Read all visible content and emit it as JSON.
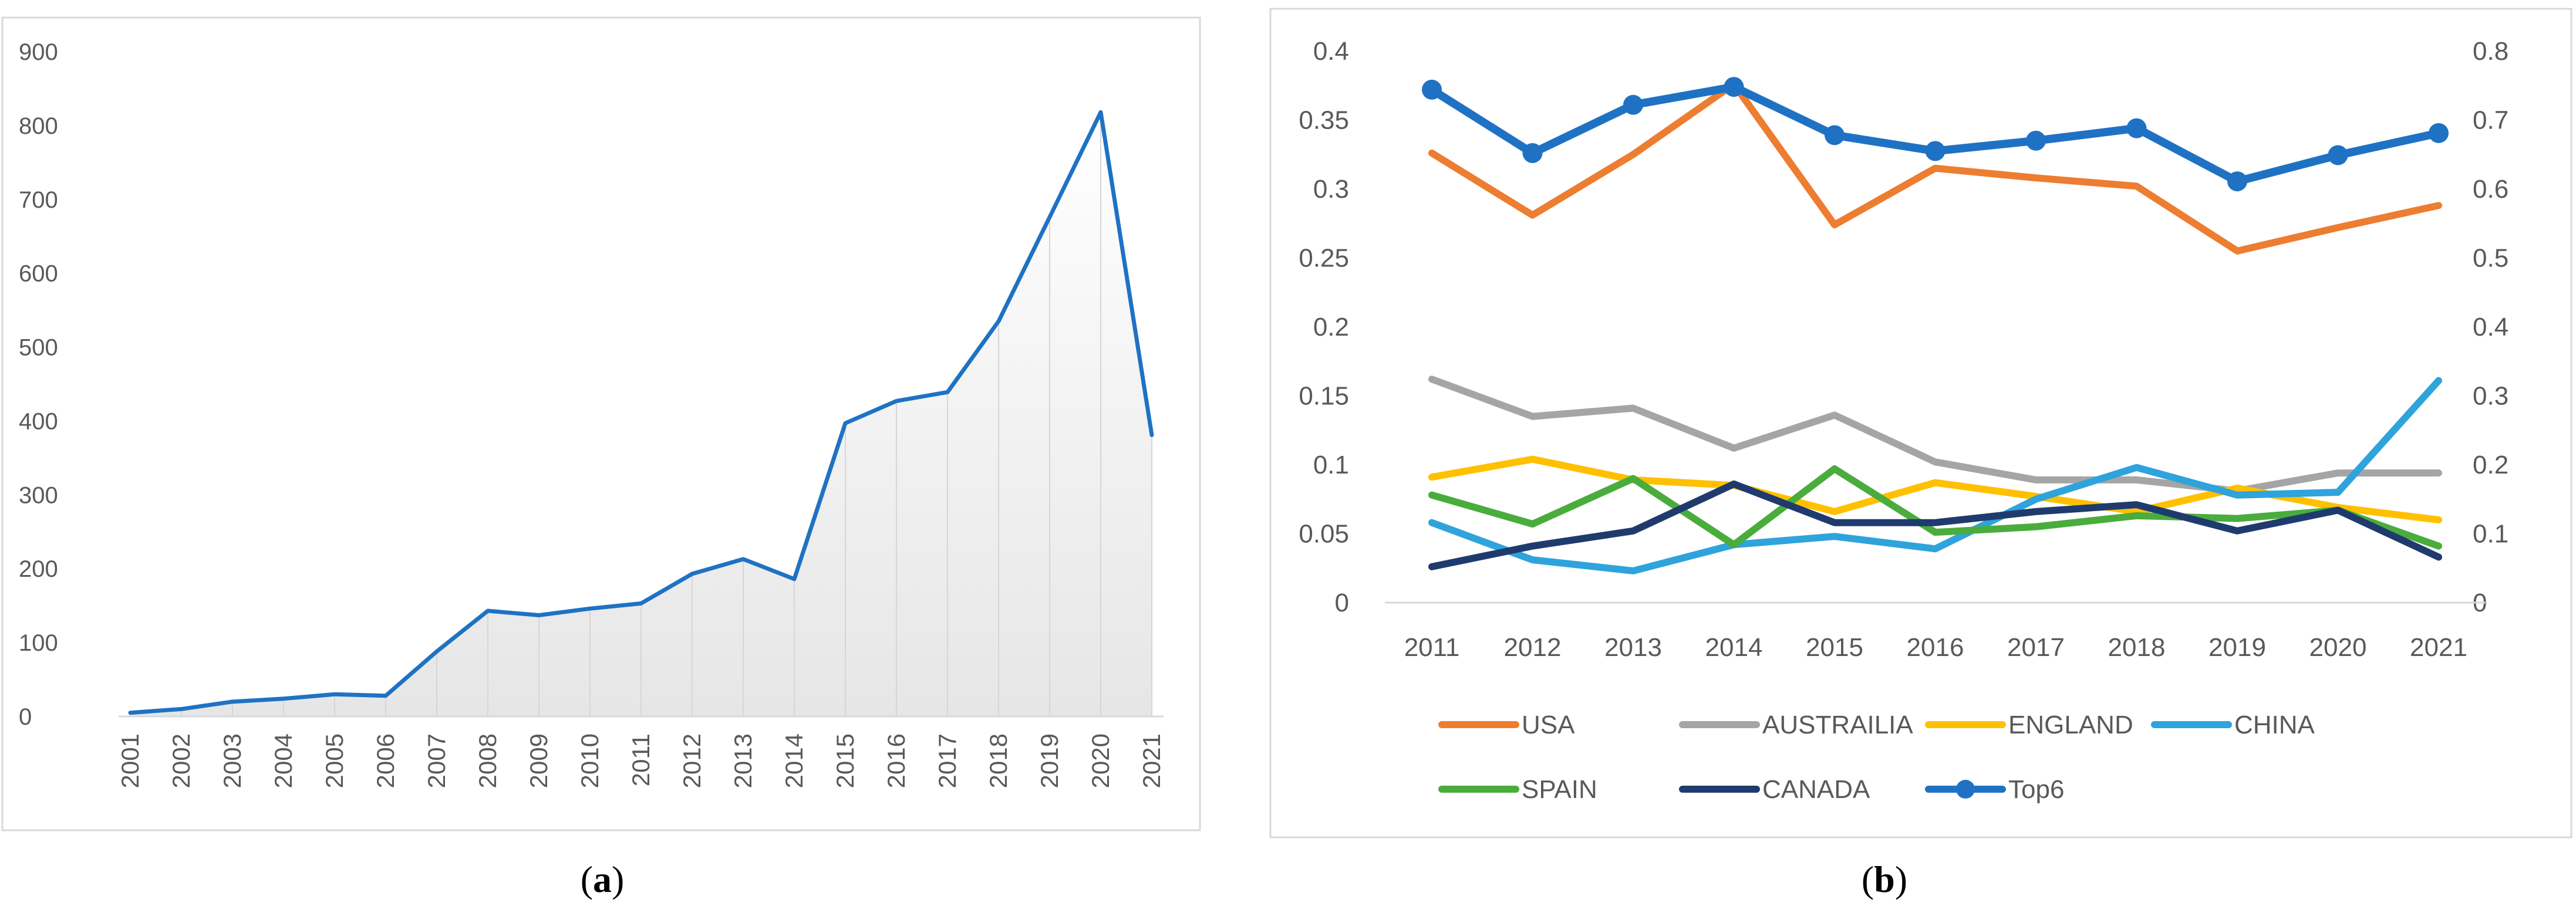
{
  "panels": [
    {
      "label_open": "(",
      "label_letter": "a",
      "label_close": ")"
    },
    {
      "label_open": "(",
      "label_letter": "b",
      "label_close": ")"
    }
  ],
  "chart_data": [
    {
      "id": "a",
      "type": "area",
      "title": "",
      "xlabel": "",
      "ylabel": "",
      "categories": [
        "2001",
        "2002",
        "2003",
        "2004",
        "2005",
        "2006",
        "2007",
        "2008",
        "2009",
        "2010",
        "2011",
        "2012",
        "2013",
        "2014",
        "2015",
        "2016",
        "2017",
        "2018",
        "2019",
        "2020",
        "2021"
      ],
      "values": [
        5,
        10,
        20,
        24,
        30,
        28,
        88,
        143,
        137,
        146,
        153,
        193,
        213,
        186,
        397,
        427,
        439,
        535,
        676,
        818,
        381
      ],
      "yticks": [
        "0",
        "100",
        "200",
        "300",
        "400",
        "500",
        "600",
        "700",
        "800",
        "900"
      ],
      "ylim": [
        0,
        900
      ],
      "color": "#1f72c3",
      "grid": false
    },
    {
      "id": "b",
      "type": "line",
      "title": "",
      "xlabel": "",
      "ylabel": "",
      "categories": [
        "2011",
        "2012",
        "2013",
        "2014",
        "2015",
        "2016",
        "2017",
        "2018",
        "2019",
        "2020",
        "2021"
      ],
      "yticks_left": [
        "0",
        "0.05",
        "0.1",
        "0.15",
        "0.2",
        "0.25",
        "0.3",
        "0.35",
        "0.4"
      ],
      "yticks_right": [
        "0",
        "0.1",
        "0.2",
        "0.3",
        "0.4",
        "0.5",
        "0.6",
        "0.7",
        "0.8"
      ],
      "ylim_left": [
        0,
        0.4
      ],
      "ylim_right": [
        0,
        0.8
      ],
      "grid": false,
      "legend_position": "bottom",
      "series": [
        {
          "name": "USA",
          "axis": "left",
          "color": "#ed7d31",
          "marker": false,
          "values": [
            0.326,
            0.281,
            0.325,
            0.376,
            0.274,
            0.315,
            0.308,
            0.302,
            0.255,
            0.272,
            0.288
          ]
        },
        {
          "name": "AUSTRAILIA",
          "axis": "left",
          "color": "#a5a5a5",
          "marker": false,
          "values": [
            0.162,
            0.135,
            0.141,
            0.112,
            0.136,
            0.102,
            0.089,
            0.089,
            0.081,
            0.094,
            0.094
          ]
        },
        {
          "name": "ENGLAND",
          "axis": "left",
          "color": "#ffc000",
          "marker": false,
          "values": [
            0.091,
            0.104,
            0.089,
            0.085,
            0.066,
            0.087,
            0.077,
            0.066,
            0.083,
            0.069,
            0.06
          ]
        },
        {
          "name": "CHINA",
          "axis": "left",
          "color": "#2ea3dc",
          "marker": false,
          "values": [
            0.058,
            0.031,
            0.023,
            0.042,
            0.048,
            0.039,
            0.075,
            0.098,
            0.078,
            0.08,
            0.161
          ]
        },
        {
          "name": "SPAIN",
          "axis": "left",
          "color": "#4aac3c",
          "marker": false,
          "values": [
            0.078,
            0.057,
            0.09,
            0.042,
            0.097,
            0.051,
            0.055,
            0.063,
            0.061,
            0.067,
            0.041
          ]
        },
        {
          "name": "CANADA",
          "axis": "left",
          "color": "#1f3b6e",
          "marker": false,
          "values": [
            0.026,
            0.041,
            0.052,
            0.086,
            0.058,
            0.058,
            0.066,
            0.071,
            0.052,
            0.067,
            0.033
          ]
        },
        {
          "name": "Top6",
          "axis": "right",
          "color": "#1f72c3",
          "marker": true,
          "values": [
            0.744,
            0.652,
            0.722,
            0.748,
            0.678,
            0.655,
            0.67,
            0.688,
            0.611,
            0.649,
            0.681
          ]
        }
      ]
    }
  ]
}
